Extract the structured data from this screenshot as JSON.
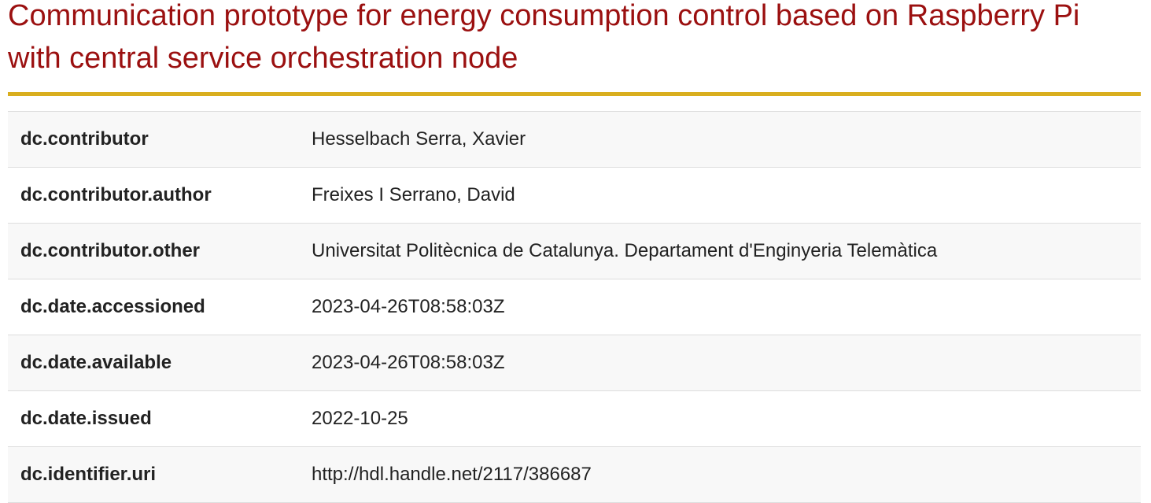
{
  "item": {
    "title": "Communication prototype for energy consumption control based on Raspberry Pi with central service orchestration node"
  },
  "colors": {
    "title": "#9b1010",
    "rule": "#d9ae1e",
    "row_stripe": "#f8f8f8",
    "border": "#dddddd"
  },
  "metadata": {
    "rows": [
      {
        "field": "dc.contributor",
        "value": "Hesselbach Serra, Xavier"
      },
      {
        "field": "dc.contributor.author",
        "value": "Freixes I Serrano, David"
      },
      {
        "field": "dc.contributor.other",
        "value": "Universitat Politècnica de Catalunya. Departament d'Enginyeria Telemàtica"
      },
      {
        "field": "dc.date.accessioned",
        "value": "2023-04-26T08:58:03Z"
      },
      {
        "field": "dc.date.available",
        "value": "2023-04-26T08:58:03Z"
      },
      {
        "field": "dc.date.issued",
        "value": "2022-10-25"
      },
      {
        "field": "dc.identifier.uri",
        "value": "http://hdl.handle.net/2117/386687"
      }
    ]
  }
}
